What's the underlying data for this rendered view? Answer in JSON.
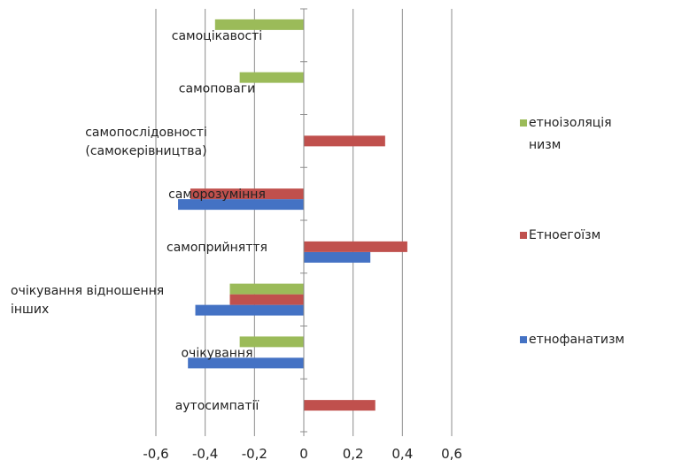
{
  "chart_data": {
    "type": "bar",
    "orientation": "horizontal",
    "categories": [
      "самоцікавості",
      "самоповаги",
      "самопослідовності (самокерівництва)",
      "саморозуміння",
      "самоприйняття",
      "очікування відношення інших",
      "очікування",
      "аутосимпатії"
    ],
    "category_label_lines": [
      [
        "самоцікавості"
      ],
      [
        "самоповаги"
      ],
      [
        "самопослідовності",
        "(самокерівництва)"
      ],
      [
        "саморозуміння"
      ],
      [
        "самоприйняття"
      ],
      [
        "очікування відношення",
        "інших"
      ],
      [
        "очікування"
      ],
      [
        "аутосимпатії"
      ]
    ],
    "series": [
      {
        "name": "етнофанатизм",
        "color": "#4472C4",
        "values": [
          0,
          0,
          0,
          -0.51,
          0.27,
          -0.44,
          -0.47,
          0
        ]
      },
      {
        "name": "Етноегоїзм",
        "color": "#C0504D",
        "values": [
          0,
          0,
          0.33,
          -0.46,
          0.42,
          -0.3,
          0,
          0.29
        ]
      },
      {
        "name": "етноізоляція низм",
        "color": "#9BBB59",
        "values": [
          -0.36,
          -0.26,
          0,
          0,
          0,
          -0.3,
          -0.26,
          0
        ]
      }
    ],
    "legend": {
      "placement": "right",
      "order": [
        "етноізоляція низм",
        "Етноегоїзм",
        "етнофанатизм"
      ],
      "labels": [
        {
          "lines": [
            "етноізоляція",
            "низм"
          ],
          "color": "#9BBB59"
        },
        {
          "lines": [
            "Етноегоїзм"
          ],
          "color": "#C0504D"
        },
        {
          "lines": [
            "етнофанатизм"
          ],
          "color": "#4472C4"
        }
      ]
    },
    "x_ticks": [
      -0.6,
      -0.4,
      -0.2,
      0,
      0.2,
      0.4,
      0.6
    ],
    "x_tick_labels": [
      "-0,6",
      "-0,4",
      "-0,2",
      "0",
      "0,2",
      "0,4",
      "0,6"
    ],
    "xlim": [
      -0.6,
      0.6
    ],
    "grid": "vertical",
    "title": "",
    "xlabel": "",
    "ylabel": ""
  }
}
